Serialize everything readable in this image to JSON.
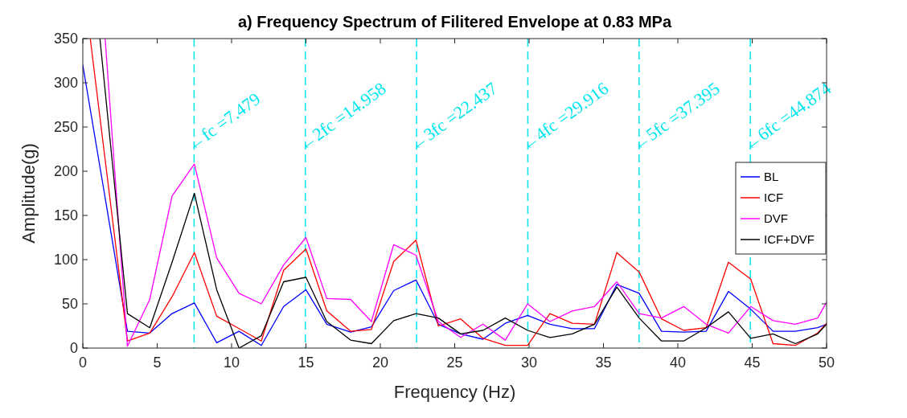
{
  "chart_data": {
    "type": "line",
    "title": "a) Frequency Spectrum of Filitered Envelope at 0.83 MPa",
    "xlabel": "Frequency (Hz)",
    "ylabel": "Amplitude(g)",
    "xlim": [
      0,
      50
    ],
    "xticks": [
      0,
      5,
      10,
      15,
      20,
      25,
      30,
      35,
      40,
      45,
      50
    ],
    "ylim": [
      0,
      350
    ],
    "yticks": [
      0,
      50,
      100,
      150,
      200,
      250,
      300,
      350
    ],
    "legend": "right",
    "line_style": "solid",
    "series": [
      {
        "name": "BL",
        "color": "#0000ff",
        "x": [
          0,
          1.5,
          3,
          4.5,
          6,
          7.5,
          9,
          10.5,
          12,
          13.5,
          15,
          16.4,
          18,
          19.4,
          20.9,
          22.4,
          23.9,
          25.4,
          26.9,
          28.4,
          29.9,
          31.4,
          32.9,
          34.4,
          35.9,
          37.4,
          38.9,
          40.4,
          41.9,
          43.4,
          44.9,
          46.4,
          47.9,
          49.4,
          50
        ],
        "values": [
          320,
          170,
          19,
          17,
          39,
          51,
          6,
          19,
          3,
          47,
          66,
          27,
          18,
          24,
          65,
          77,
          27,
          16,
          10,
          28,
          37,
          27,
          22,
          22,
          72,
          62,
          19,
          18,
          19,
          64,
          44,
          19,
          19,
          23,
          27
        ]
      },
      {
        "name": "ICF",
        "color": "#ff0000",
        "x": [
          0.5,
          3,
          4.5,
          6,
          7.5,
          9,
          10.5,
          12,
          13.5,
          15,
          16.4,
          18,
          19.4,
          20.9,
          22.4,
          23.9,
          25.4,
          26.9,
          28.4,
          29.9,
          31.4,
          32.9,
          34.4,
          35.9,
          37.4,
          38.9,
          40.4,
          41.9,
          43.4,
          44.9,
          46.4,
          47.9,
          49.4,
          50
        ],
        "values": [
          350,
          8,
          17,
          58,
          108,
          36,
          22,
          8,
          88,
          112,
          42,
          19,
          21,
          98,
          122,
          25,
          33,
          11,
          3,
          3,
          39,
          28,
          27,
          108,
          86,
          33,
          20,
          23,
          97,
          78,
          5,
          3,
          17,
          28
        ]
      },
      {
        "name": "DVF",
        "color": "#ff00ff",
        "x": [
          1.5,
          3,
          4.5,
          6,
          7.5,
          9,
          10.5,
          12,
          13.5,
          15,
          16.4,
          18,
          19.4,
          20.9,
          22.4,
          23.9,
          25.4,
          26.9,
          28.4,
          29.9,
          31.4,
          32.9,
          34.4,
          35.9,
          37.4,
          38.9,
          40.4,
          41.9,
          43.4,
          44.9,
          46.4,
          47.9,
          49.4,
          50
        ],
        "values": [
          350,
          2,
          55,
          172,
          208,
          102,
          62,
          50,
          94,
          125,
          56,
          55,
          30,
          117,
          105,
          30,
          12,
          27,
          9,
          50,
          30,
          42,
          47,
          75,
          39,
          34,
          47,
          27,
          17,
          47,
          31,
          27,
          34,
          52
        ]
      },
      {
        "name": "ICF+DVF",
        "color": "#000000",
        "x": [
          1.15,
          3,
          4.5,
          6,
          7.5,
          9,
          10.5,
          12,
          13.5,
          15,
          16.4,
          18,
          19.4,
          20.9,
          22.4,
          23.9,
          25.4,
          26.9,
          28.4,
          29.9,
          31.4,
          32.9,
          34.4,
          35.9,
          37.4,
          38.9,
          40.4,
          41.9,
          43.4,
          44.9,
          46.4,
          47.9,
          49.4,
          50
        ],
        "values": [
          350,
          39,
          23,
          97,
          175,
          66,
          0,
          14,
          75,
          80,
          30,
          9,
          5,
          31,
          39,
          34,
          16,
          20,
          34,
          20,
          12,
          16,
          27,
          69,
          34,
          8,
          8,
          23,
          41,
          11,
          16,
          5,
          16,
          27
        ]
      }
    ],
    "ref_lines": [
      {
        "axis": "x",
        "value": 7.479,
        "label": "←fc =7.479",
        "color": "#00e5ee",
        "line_style": "dashed"
      },
      {
        "axis": "x",
        "value": 14.958,
        "label": "←2fc =14.958",
        "color": "#00e5ee",
        "line_style": "dashed"
      },
      {
        "axis": "x",
        "value": 22.437,
        "label": "←3fc =22.437",
        "color": "#00e5ee",
        "line_style": "dashed"
      },
      {
        "axis": "x",
        "value": 29.916,
        "label": "←4fc =29.916",
        "color": "#00e5ee",
        "line_style": "dashed"
      },
      {
        "axis": "x",
        "value": 37.395,
        "label": "←5fc =37.395",
        "color": "#00e5ee",
        "line_style": "dashed"
      },
      {
        "axis": "x",
        "value": 44.874,
        "label": "←6fc =44.874",
        "color": "#00e5ee",
        "line_style": "dashed"
      }
    ]
  }
}
